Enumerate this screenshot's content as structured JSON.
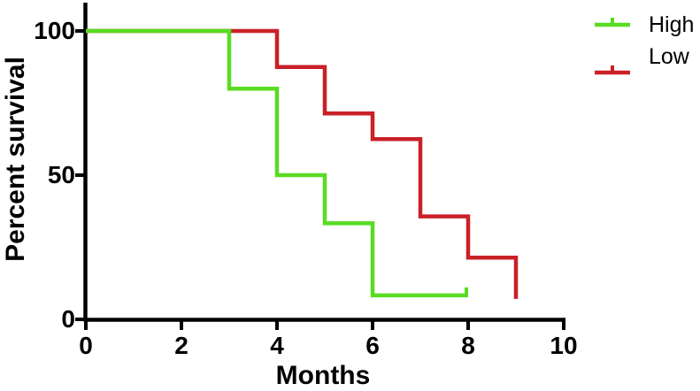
{
  "colors": {
    "high": "#58DC22",
    "low": "#CA2027",
    "axis": "#000000",
    "text": "#000000",
    "background": "#ffffff"
  },
  "chart_data": {
    "type": "line",
    "variant": "kaplan_meier_step_survival",
    "title": "",
    "xlabel": "Months",
    "ylabel": "Percent survival",
    "xlim": [
      0,
      10
    ],
    "ylim": [
      0,
      100
    ],
    "x_ticks": [
      "0",
      "2",
      "4",
      "6",
      "8",
      "10"
    ],
    "y_ticks": [
      "100",
      "50",
      "0"
    ],
    "grid": false,
    "legend_position": "top-right",
    "legend": [
      {
        "label": "High",
        "color": "#58DC22",
        "symbol": "line-with-censor-tick"
      },
      {
        "label": "Low",
        "color": "#CA2027",
        "symbol": "line-with-censor-tick"
      }
    ],
    "series": [
      {
        "name": "Low",
        "color": "#CA2027",
        "points": [
          [
            0,
            100
          ],
          [
            4,
            100
          ],
          [
            4,
            87.5
          ],
          [
            5,
            87.5
          ],
          [
            5,
            71.4
          ],
          [
            6,
            71.4
          ],
          [
            6,
            62.5
          ],
          [
            7,
            62.5
          ],
          [
            7,
            35.7
          ],
          [
            8,
            35.7
          ],
          [
            8,
            21.4
          ],
          [
            9,
            21.4
          ],
          [
            9,
            7.1
          ]
        ],
        "censor_marks": []
      },
      {
        "name": "High",
        "color": "#58DC22",
        "points": [
          [
            0,
            100
          ],
          [
            3,
            100
          ],
          [
            3,
            80
          ],
          [
            4,
            80
          ],
          [
            4,
            50
          ],
          [
            5,
            50
          ],
          [
            5,
            33.3
          ],
          [
            6,
            33.3
          ],
          [
            6,
            8.3
          ],
          [
            8,
            8.3
          ]
        ],
        "censor_marks": [
          [
            8,
            8.3
          ]
        ]
      }
    ]
  }
}
